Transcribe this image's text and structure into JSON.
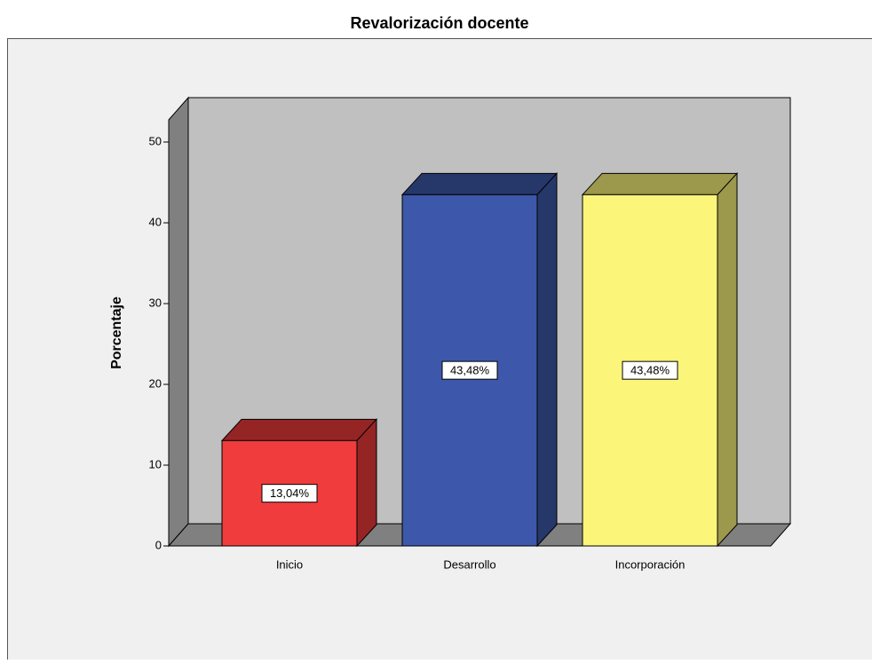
{
  "chart_data": {
    "type": "bar3d",
    "title": "Revalorización docente",
    "y_label": "Porcentaje",
    "categories": [
      "Inicio",
      "Desarrollo",
      "Incorporación"
    ],
    "values": [
      13.04,
      43.48,
      43.48
    ],
    "value_labels": [
      "13,04%",
      "43,48%",
      "43,48%"
    ],
    "colors": [
      "#f03c3c",
      "#3d58aa",
      "#fbf57a"
    ],
    "ylim": [
      0,
      50
    ],
    "yticks": [
      0,
      10,
      20,
      30,
      40,
      50
    ]
  }
}
